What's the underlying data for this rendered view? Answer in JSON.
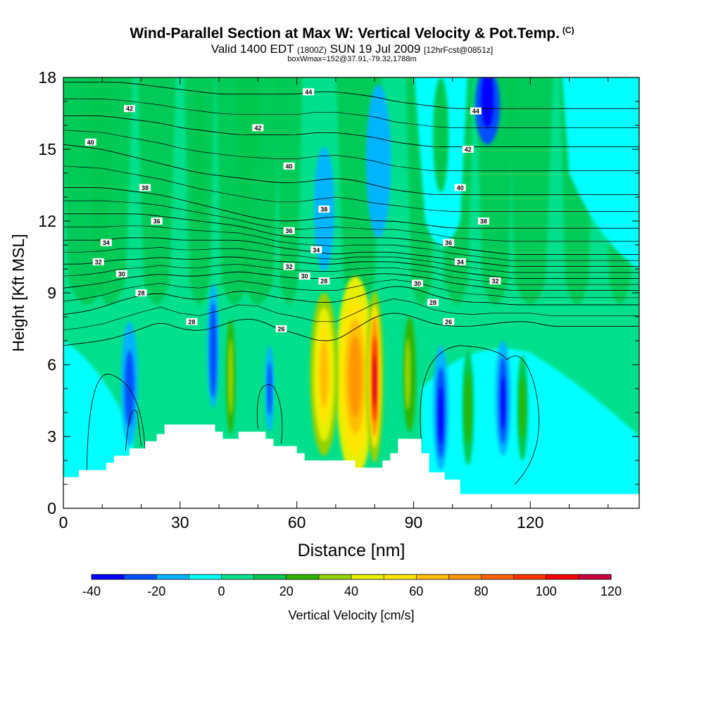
{
  "header": {
    "title": "Wind-Parallel Section at Max W: Vertical Velocity & Pot.Temp.",
    "copyright": "(C)",
    "valid": "Valid 1400 EDT",
    "utc": "(1800Z)",
    "date": "SUN 19 Jul 2009",
    "forecast": "[12hrFcst@0851z]",
    "box_info": "boxWmax=152@37.91,-79.32,1788m"
  },
  "chart_data": {
    "type": "heatmap",
    "title": "Wind-Parallel Section at Max W: Vertical Velocity & Pot.Temp.",
    "xlabel": "Distance [nm]",
    "ylabel": "Height [Kft MSL]",
    "xlim": [
      0,
      148
    ],
    "ylim": [
      0,
      18
    ],
    "x_ticks": [
      0,
      30,
      60,
      90,
      120
    ],
    "y_ticks": [
      0,
      3,
      6,
      9,
      12,
      15,
      18
    ],
    "colorbar": {
      "label": "Vertical Velocity [cm/s]",
      "tick_labels": [
        -40,
        -20,
        0,
        20,
        40,
        60,
        80,
        100,
        120
      ],
      "bounds": [
        -40,
        120
      ],
      "colors": [
        "#0000ff",
        "#0050ff",
        "#00b4ff",
        "#00ffff",
        "#00e08c",
        "#00c850",
        "#2db400",
        "#96d200",
        "#e6f000",
        "#ffe600",
        "#ffbe00",
        "#ff9600",
        "#ff6400",
        "#ff3200",
        "#ff0000",
        "#c8003c"
      ]
    },
    "terrain_profile": [
      [
        0,
        1.3
      ],
      [
        4,
        1.3
      ],
      [
        4,
        1.6
      ],
      [
        11,
        1.6
      ],
      [
        11,
        1.9
      ],
      [
        13,
        1.9
      ],
      [
        13,
        2.2
      ],
      [
        17,
        2.2
      ],
      [
        17,
        2.5
      ],
      [
        21,
        2.5
      ],
      [
        21,
        2.8
      ],
      [
        24,
        2.8
      ],
      [
        24,
        3.1
      ],
      [
        26,
        3.1
      ],
      [
        26,
        3.5
      ],
      [
        39,
        3.5
      ],
      [
        39,
        3.2
      ],
      [
        41,
        3.2
      ],
      [
        41,
        2.9
      ],
      [
        45,
        2.9
      ],
      [
        45,
        3.2
      ],
      [
        52,
        3.2
      ],
      [
        52,
        2.9
      ],
      [
        54,
        2.9
      ],
      [
        54,
        2.6
      ],
      [
        60,
        2.6
      ],
      [
        60,
        2.3
      ],
      [
        62,
        2.3
      ],
      [
        62,
        2.0
      ],
      [
        75,
        2.0
      ],
      [
        75,
        1.7
      ],
      [
        82,
        1.7
      ],
      [
        82,
        2.0
      ],
      [
        84,
        2.0
      ],
      [
        84,
        2.3
      ],
      [
        86,
        2.3
      ],
      [
        86,
        2.9
      ],
      [
        92,
        2.9
      ],
      [
        92,
        2.3
      ],
      [
        94,
        2.3
      ],
      [
        94,
        1.5
      ],
      [
        98,
        1.5
      ],
      [
        98,
        1.2
      ],
      [
        102,
        1.2
      ],
      [
        102,
        0.6
      ],
      [
        148,
        0.6
      ]
    ],
    "velocity_cells": [
      {
        "x": 75,
        "y": 5.5,
        "rx": 5,
        "ry": 4.2,
        "v": 45
      },
      {
        "x": 75,
        "y": 5.5,
        "rx": 3.8,
        "ry": 3.3,
        "v": 55
      },
      {
        "x": 75,
        "y": 5.5,
        "rx": 2.6,
        "ry": 2.4,
        "v": 65
      },
      {
        "x": 75,
        "y": 5.5,
        "rx": 1.6,
        "ry": 1.7,
        "v": 75
      },
      {
        "x": 67,
        "y": 5.6,
        "rx": 3.6,
        "ry": 3.4,
        "v": 35
      },
      {
        "x": 67,
        "y": 5.6,
        "rx": 2.7,
        "ry": 2.8,
        "v": 45
      },
      {
        "x": 67,
        "y": 5.6,
        "rx": 1.8,
        "ry": 2.1,
        "v": 55
      },
      {
        "x": 67,
        "y": 5.6,
        "rx": 1.1,
        "ry": 1.4,
        "v": 65
      },
      {
        "x": 80,
        "y": 5.5,
        "rx": 2.2,
        "ry": 3.6,
        "v": 35
      },
      {
        "x": 80,
        "y": 5.5,
        "rx": 1.6,
        "ry": 3.0,
        "v": 55
      },
      {
        "x": 80,
        "y": 5.5,
        "rx": 1.1,
        "ry": 2.5,
        "v": 75
      },
      {
        "x": 80,
        "y": 5.4,
        "rx": 0.7,
        "ry": 1.8,
        "v": 95
      },
      {
        "x": 80,
        "y": 5.3,
        "rx": 0.35,
        "ry": 1.1,
        "v": 115
      },
      {
        "x": 89,
        "y": 5.6,
        "rx": 1.6,
        "ry": 2.4,
        "v": 25
      },
      {
        "x": 88.5,
        "y": 5.6,
        "rx": 0.8,
        "ry": 1.5,
        "v": 35
      },
      {
        "x": 43,
        "y": 5.5,
        "rx": 1.2,
        "ry": 2.4,
        "v": 25
      },
      {
        "x": 43,
        "y": 5.5,
        "rx": 0.7,
        "ry": 1.6,
        "v": 35
      },
      {
        "x": 17,
        "y": 5.2,
        "rx": 2.2,
        "ry": 2.6,
        "v": -15
      },
      {
        "x": 17,
        "y": 5.0,
        "rx": 1.2,
        "ry": 1.6,
        "v": -25
      },
      {
        "x": 38.5,
        "y": 6.8,
        "rx": 1.5,
        "ry": 2.6,
        "v": -15
      },
      {
        "x": 38.5,
        "y": 6.6,
        "rx": 0.9,
        "ry": 2.0,
        "v": -25
      },
      {
        "x": 53,
        "y": 5.0,
        "rx": 1.2,
        "ry": 1.8,
        "v": -15
      },
      {
        "x": 53,
        "y": 5.0,
        "rx": 0.6,
        "ry": 1.1,
        "v": -25
      },
      {
        "x": 97,
        "y": 4.2,
        "rx": 2.0,
        "ry": 2.6,
        "v": -15
      },
      {
        "x": 97,
        "y": 4.0,
        "rx": 1.2,
        "ry": 1.9,
        "v": -25
      },
      {
        "x": 97,
        "y": 3.9,
        "rx": 0.6,
        "ry": 1.2,
        "v": -35
      },
      {
        "x": 113,
        "y": 4.6,
        "rx": 2.0,
        "ry": 2.4,
        "v": -15
      },
      {
        "x": 113,
        "y": 4.5,
        "rx": 1.1,
        "ry": 1.8,
        "v": -25
      },
      {
        "x": 113,
        "y": 4.4,
        "rx": 0.5,
        "ry": 1.1,
        "v": -35
      },
      {
        "x": 104,
        "y": 4.2,
        "rx": 1.5,
        "ry": 2.4,
        "v": 15
      },
      {
        "x": 104,
        "y": 4.2,
        "rx": 0.8,
        "ry": 1.5,
        "v": 25
      },
      {
        "x": 118,
        "y": 4.2,
        "rx": 1.4,
        "ry": 2.2,
        "v": 15
      },
      {
        "x": 118,
        "y": 4.2,
        "rx": 0.7,
        "ry": 1.3,
        "v": 25
      },
      {
        "x": 81,
        "y": 14.5,
        "rx": 3.2,
        "ry": 3.2,
        "v": -15
      },
      {
        "x": 67,
        "y": 12.5,
        "rx": 2.6,
        "ry": 2.6,
        "v": -15
      },
      {
        "x": 109,
        "y": 16.8,
        "rx": 3.2,
        "ry": 1.6,
        "v": -25
      },
      {
        "x": 109,
        "y": 17.1,
        "rx": 1.6,
        "ry": 1.2,
        "v": -35
      },
      {
        "x": 35,
        "y": 14.5,
        "rx": 1.6,
        "ry": 3.0,
        "v": 15
      },
      {
        "x": 48,
        "y": 16.2,
        "rx": 2.6,
        "ry": 2.2,
        "v": 15
      },
      {
        "x": 97,
        "y": 15.6,
        "rx": 2.0,
        "ry": 2.4,
        "v": 15
      }
    ],
    "theta_contours": [
      {
        "value": 26,
        "heights": [
          6.8,
          6.9,
          7.0,
          7.2,
          7.5,
          7.8,
          7.5,
          7.4,
          7.6,
          7.9,
          7.9,
          7.5,
          7.3,
          7.0,
          7.0,
          7.5,
          8.0,
          8.2,
          8.0,
          7.7,
          7.6,
          7.6,
          7.7,
          7.8,
          7.8,
          7.6,
          7.6,
          7.6,
          7.6,
          7.6
        ]
      },
      {
        "value": 28,
        "heights": [
          8.1,
          8.2,
          8.4,
          8.7,
          8.9,
          9.0,
          8.8,
          8.7,
          8.9,
          9.1,
          9.0,
          8.8,
          8.7,
          8.6,
          8.6,
          8.8,
          9.1,
          9.3,
          9.2,
          8.9,
          8.7,
          8.6,
          8.6,
          8.5,
          8.5,
          8.5,
          8.5,
          8.5,
          8.5,
          8.5
        ]
      },
      {
        "value": 30,
        "heights": [
          9.2,
          9.3,
          9.4,
          9.6,
          9.7,
          9.8,
          9.7,
          9.7,
          9.8,
          9.9,
          9.8,
          9.7,
          9.6,
          9.6,
          9.6,
          9.7,
          9.8,
          9.8,
          9.7,
          9.6,
          9.4,
          9.3,
          9.2,
          9.1,
          9.1,
          9.1,
          9.1,
          9.1,
          9.1,
          9.1
        ]
      },
      {
        "value": 32,
        "heights": [
          10.2,
          10.2,
          10.3,
          10.4,
          10.4,
          10.5,
          10.4,
          10.4,
          10.5,
          10.5,
          10.4,
          10.3,
          10.3,
          10.2,
          10.2,
          10.3,
          10.3,
          10.3,
          10.2,
          10.1,
          9.9,
          9.8,
          9.7,
          9.6,
          9.6,
          9.6,
          9.6,
          9.6,
          9.6,
          9.6
        ]
      },
      {
        "value": 34,
        "heights": [
          11.2,
          11.2,
          11.2,
          11.3,
          11.3,
          11.3,
          11.2,
          11.2,
          11.2,
          11.2,
          11.1,
          10.9,
          10.8,
          10.7,
          10.6,
          10.7,
          10.7,
          10.7,
          10.6,
          10.5,
          10.4,
          10.3,
          10.2,
          10.1,
          10.1,
          10.1,
          10.1,
          10.1,
          10.1,
          10.1
        ]
      },
      {
        "value": 36,
        "heights": [
          12.3,
          12.3,
          12.3,
          12.3,
          12.3,
          12.2,
          12.1,
          12.0,
          11.9,
          11.8,
          11.6,
          11.4,
          11.3,
          11.3,
          11.3,
          11.3,
          11.3,
          11.3,
          11.2,
          11.1,
          10.9,
          10.8,
          10.7,
          10.6,
          10.6,
          10.6,
          10.6,
          10.6,
          10.6,
          10.6
        ]
      },
      {
        "value": 38,
        "heights": [
          13.4,
          13.4,
          13.4,
          13.3,
          13.2,
          13.1,
          12.9,
          12.7,
          12.5,
          12.3,
          12.1,
          12.0,
          12.0,
          12.1,
          12.2,
          12.1,
          12.0,
          12.0,
          11.9,
          11.8,
          11.7,
          11.7,
          11.7,
          11.7,
          11.7,
          11.7,
          11.7,
          11.7,
          11.7,
          11.7
        ]
      },
      {
        "value": 40,
        "heights": [
          15.2,
          15.1,
          15.0,
          14.8,
          14.6,
          14.4,
          14.2,
          14.0,
          13.9,
          13.8,
          13.7,
          13.6,
          13.6,
          13.7,
          13.8,
          13.7,
          13.5,
          13.3,
          13.2,
          13.1,
          13.1,
          13.1,
          13.1,
          13.1,
          13.1,
          13.1,
          13.1,
          13.1,
          13.1,
          13.1
        ]
      },
      {
        "value": 42,
        "heights": [
          16.4,
          16.4,
          16.4,
          16.3,
          16.2,
          16.1,
          15.9,
          15.8,
          15.7,
          15.6,
          15.6,
          15.6,
          15.6,
          15.7,
          15.7,
          15.6,
          15.5,
          15.3,
          15.2,
          15.1,
          15.1,
          15.1,
          15.1,
          15.1,
          15.1,
          15.1,
          15.1,
          15.1,
          15.1,
          15.1
        ]
      },
      {
        "value": 44,
        "heights": [
          17.8,
          17.8,
          17.8,
          17.8,
          17.7,
          17.6,
          17.5,
          17.4,
          17.3,
          17.3,
          17.3,
          17.3,
          17.3,
          17.4,
          17.4,
          17.3,
          17.2,
          17.0,
          16.9,
          16.8,
          16.7,
          16.7,
          16.7,
          16.7,
          16.7,
          16.7,
          16.7,
          16.7,
          16.7,
          16.7
        ]
      }
    ],
    "theta_x_grid": [
      0,
      5,
      10,
      15,
      20,
      25,
      30,
      35,
      40,
      45,
      50,
      55,
      60,
      65,
      70,
      75,
      80,
      85,
      90,
      95,
      100,
      105,
      110,
      115,
      120,
      125,
      130,
      135,
      140,
      148
    ],
    "theta_labels": [
      {
        "x": 17,
        "y": 16.7,
        "text": "42"
      },
      {
        "x": 7,
        "y": 15.3,
        "text": "40"
      },
      {
        "x": 21,
        "y": 13.4,
        "text": "38"
      },
      {
        "x": 24,
        "y": 12.0,
        "text": "36"
      },
      {
        "x": 11,
        "y": 11.1,
        "text": "34"
      },
      {
        "x": 9,
        "y": 10.3,
        "text": "32"
      },
      {
        "x": 15,
        "y": 9.8,
        "text": "30"
      },
      {
        "x": 20,
        "y": 9.0,
        "text": "28"
      },
      {
        "x": 33,
        "y": 7.8,
        "text": "28"
      },
      {
        "x": 63,
        "y": 17.4,
        "text": "44"
      },
      {
        "x": 50,
        "y": 15.9,
        "text": "42"
      },
      {
        "x": 58,
        "y": 14.3,
        "text": "40"
      },
      {
        "x": 67,
        "y": 12.5,
        "text": "38"
      },
      {
        "x": 58,
        "y": 11.6,
        "text": "36"
      },
      {
        "x": 65,
        "y": 10.8,
        "text": "34"
      },
      {
        "x": 58,
        "y": 10.1,
        "text": "32"
      },
      {
        "x": 62,
        "y": 9.7,
        "text": "30"
      },
      {
        "x": 67,
        "y": 9.5,
        "text": "28"
      },
      {
        "x": 56,
        "y": 7.5,
        "text": "26"
      },
      {
        "x": 106,
        "y": 16.6,
        "text": "44"
      },
      {
        "x": 104,
        "y": 15.0,
        "text": "42"
      },
      {
        "x": 102,
        "y": 13.4,
        "text": "40"
      },
      {
        "x": 108,
        "y": 12.0,
        "text": "38"
      },
      {
        "x": 99,
        "y": 11.1,
        "text": "36"
      },
      {
        "x": 102,
        "y": 10.3,
        "text": "34"
      },
      {
        "x": 111,
        "y": 9.5,
        "text": "32"
      },
      {
        "x": 91,
        "y": 9.4,
        "text": "30"
      },
      {
        "x": 95,
        "y": 8.6,
        "text": "28"
      },
      {
        "x": 99,
        "y": 7.8,
        "text": "26"
      }
    ]
  }
}
